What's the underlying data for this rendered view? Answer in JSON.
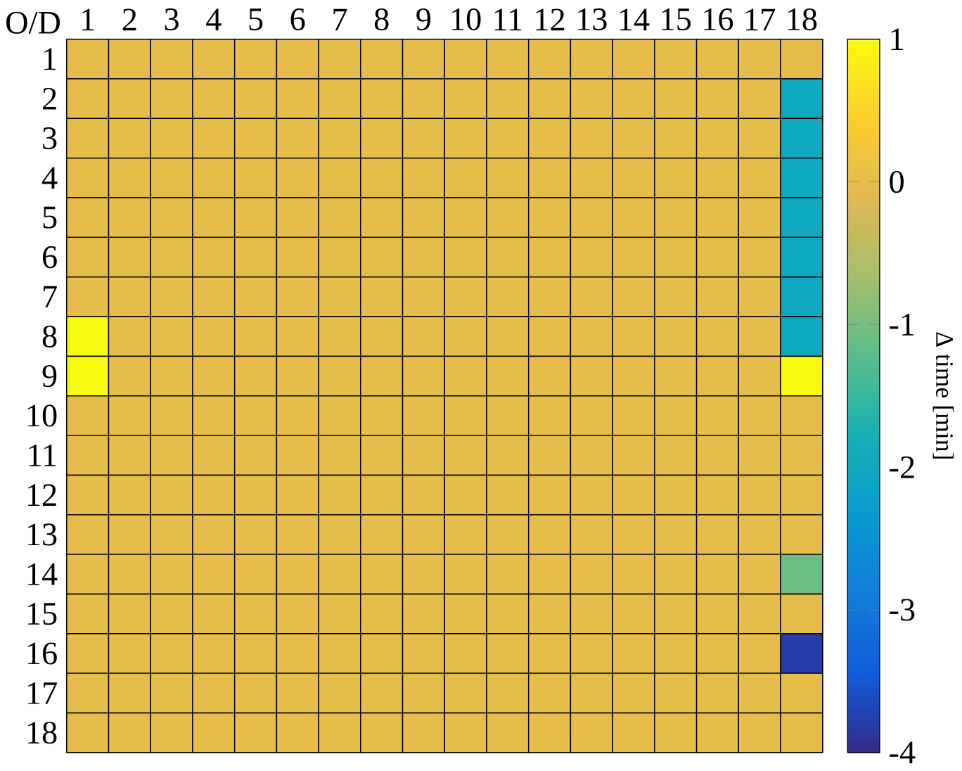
{
  "chart_data": {
    "type": "heatmap",
    "categories": [
      "1",
      "2",
      "3",
      "4",
      "5",
      "6",
      "7",
      "8",
      "9",
      "10",
      "11",
      "12",
      "13",
      "14",
      "15",
      "16",
      "17",
      "18"
    ],
    "y_categories": [
      "1",
      "2",
      "3",
      "4",
      "5",
      "6",
      "7",
      "8",
      "9",
      "10",
      "11",
      "12",
      "13",
      "14",
      "15",
      "16",
      "17",
      "18"
    ],
    "cells": [
      [
        0,
        0,
        0,
        0,
        0,
        0,
        0,
        0,
        0,
        0,
        0,
        0,
        0,
        0,
        0,
        0,
        0,
        0
      ],
      [
        0,
        0,
        0,
        0,
        0,
        0,
        0,
        0,
        0,
        0,
        0,
        0,
        0,
        0,
        0,
        0,
        0,
        -2
      ],
      [
        0,
        0,
        0,
        0,
        0,
        0,
        0,
        0,
        0,
        0,
        0,
        0,
        0,
        0,
        0,
        0,
        0,
        -2
      ],
      [
        0,
        0,
        0,
        0,
        0,
        0,
        0,
        0,
        0,
        0,
        0,
        0,
        0,
        0,
        0,
        0,
        0,
        -2
      ],
      [
        0,
        0,
        0,
        0,
        0,
        0,
        0,
        0,
        0,
        0,
        0,
        0,
        0,
        0,
        0,
        0,
        0,
        -2
      ],
      [
        0,
        0,
        0,
        0,
        0,
        0,
        0,
        0,
        0,
        0,
        0,
        0,
        0,
        0,
        0,
        0,
        0,
        -2
      ],
      [
        0,
        0,
        0,
        0,
        0,
        0,
        0,
        0,
        0,
        0,
        0,
        0,
        0,
        0,
        0,
        0,
        0,
        -2
      ],
      [
        1,
        0,
        0,
        0,
        0,
        0,
        0,
        0,
        0,
        0,
        0,
        0,
        0,
        0,
        0,
        0,
        0,
        -2
      ],
      [
        1,
        0,
        0,
        0,
        0,
        0,
        0,
        0,
        0,
        0,
        0,
        0,
        0,
        0,
        0,
        0,
        0,
        1
      ],
      [
        0,
        0,
        0,
        0,
        0,
        0,
        0,
        0,
        0,
        0,
        0,
        0,
        0,
        0,
        0,
        0,
        0,
        0
      ],
      [
        0,
        0,
        0,
        0,
        0,
        0,
        0,
        0,
        0,
        0,
        0,
        0,
        0,
        0,
        0,
        0,
        0,
        0
      ],
      [
        0,
        0,
        0,
        0,
        0,
        0,
        0,
        0,
        0,
        0,
        0,
        0,
        0,
        0,
        0,
        0,
        0,
        0
      ],
      [
        0,
        0,
        0,
        0,
        0,
        0,
        0,
        0,
        0,
        0,
        0,
        0,
        0,
        0,
        0,
        0,
        0,
        0
      ],
      [
        0,
        0,
        0,
        0,
        0,
        0,
        0,
        0,
        0,
        0,
        0,
        0,
        0,
        0,
        0,
        0,
        0,
        -1.1
      ],
      [
        0,
        0,
        0,
        0,
        0,
        0,
        0,
        0,
        0,
        0,
        0,
        0,
        0,
        0,
        0,
        0,
        0,
        0
      ],
      [
        0,
        0,
        0,
        0,
        0,
        0,
        0,
        0,
        0,
        0,
        0,
        0,
        0,
        0,
        0,
        0,
        0,
        -3.8
      ],
      [
        0,
        0,
        0,
        0,
        0,
        0,
        0,
        0,
        0,
        0,
        0,
        0,
        0,
        0,
        0,
        0,
        0,
        0
      ],
      [
        0,
        0,
        0,
        0,
        0,
        0,
        0,
        0,
        0,
        0,
        0,
        0,
        0,
        0,
        0,
        0,
        0,
        0
      ]
    ],
    "clim": [
      -4,
      1
    ],
    "cticks": [
      -4,
      -3,
      -2,
      -1,
      0,
      1
    ],
    "clabel": "Δ time [min]",
    "annotations": [
      "O/D"
    ]
  }
}
